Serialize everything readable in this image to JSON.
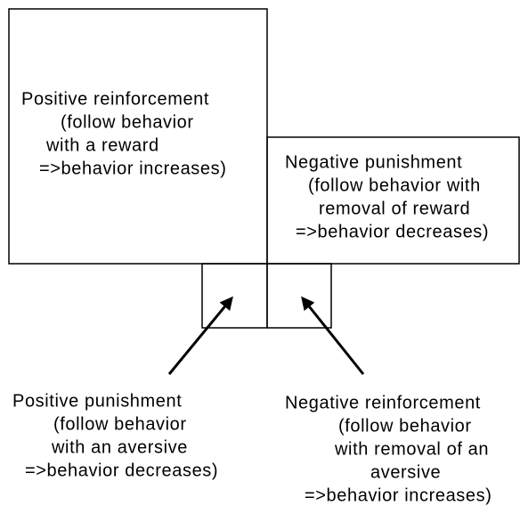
{
  "quadrants": [
    {
      "lines": [
        "Positive reinforcement",
        "(follow behavior",
        "with a reward",
        "=>behavior increases)"
      ]
    },
    {
      "lines": [
        "Negative punishment",
        "(follow behavior with",
        "removal of reward",
        "=>behavior decreases)"
      ]
    },
    {
      "lines": [
        "Positive punishment",
        "(follow behavior",
        "with an aversive",
        "=>behavior decreases)"
      ]
    },
    {
      "lines": [
        "Negative reinforcement",
        "(follow behavior",
        "with removal of an",
        "aversive",
        "=>behavior increases)"
      ]
    }
  ]
}
